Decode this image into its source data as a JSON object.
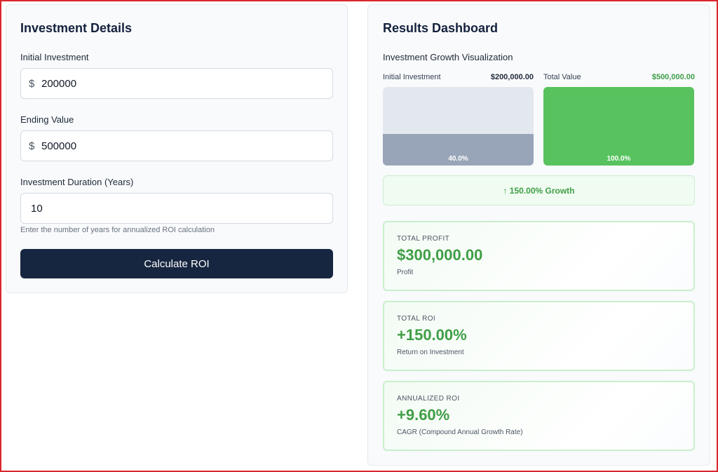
{
  "investment_details": {
    "title": "Investment Details",
    "initial_investment": {
      "label": "Initial Investment",
      "currency": "$",
      "value": "200000"
    },
    "ending_value": {
      "label": "Ending Value",
      "currency": "$",
      "value": "500000"
    },
    "duration": {
      "label": "Investment Duration (Years)",
      "value": "10",
      "hint": "Enter the number of years for annualized ROI calculation"
    },
    "calculate_label": "Calculate ROI"
  },
  "results": {
    "title": "Results Dashboard",
    "visualization": {
      "heading": "Investment Growth Visualization",
      "bars": [
        {
          "label": "Initial Investment",
          "value": "$200,000.00",
          "percent_text": "40.0%",
          "fill_fraction": 0.4,
          "color": "#98a5b8"
        },
        {
          "label": "Total Value",
          "value": "$500,000.00",
          "percent_text": "100.0%",
          "fill_fraction": 1.0,
          "color": "#58c35e"
        }
      ],
      "growth_text": "↑ 150.00% Growth"
    },
    "cards": [
      {
        "key": "TOTAL PROFIT",
        "value": "$300,000.00",
        "desc": "Profit"
      },
      {
        "key": "TOTAL ROI",
        "value": "+150.00%",
        "desc": "Return on Investment"
      },
      {
        "key": "ANNUALIZED ROI",
        "value": "+9.60%",
        "desc": "CAGR (Compound Annual Growth Rate)"
      }
    ]
  },
  "colors": {
    "accent_green": "#3f9e46",
    "button_dark": "#172640",
    "frame_red": "#d9262c"
  }
}
